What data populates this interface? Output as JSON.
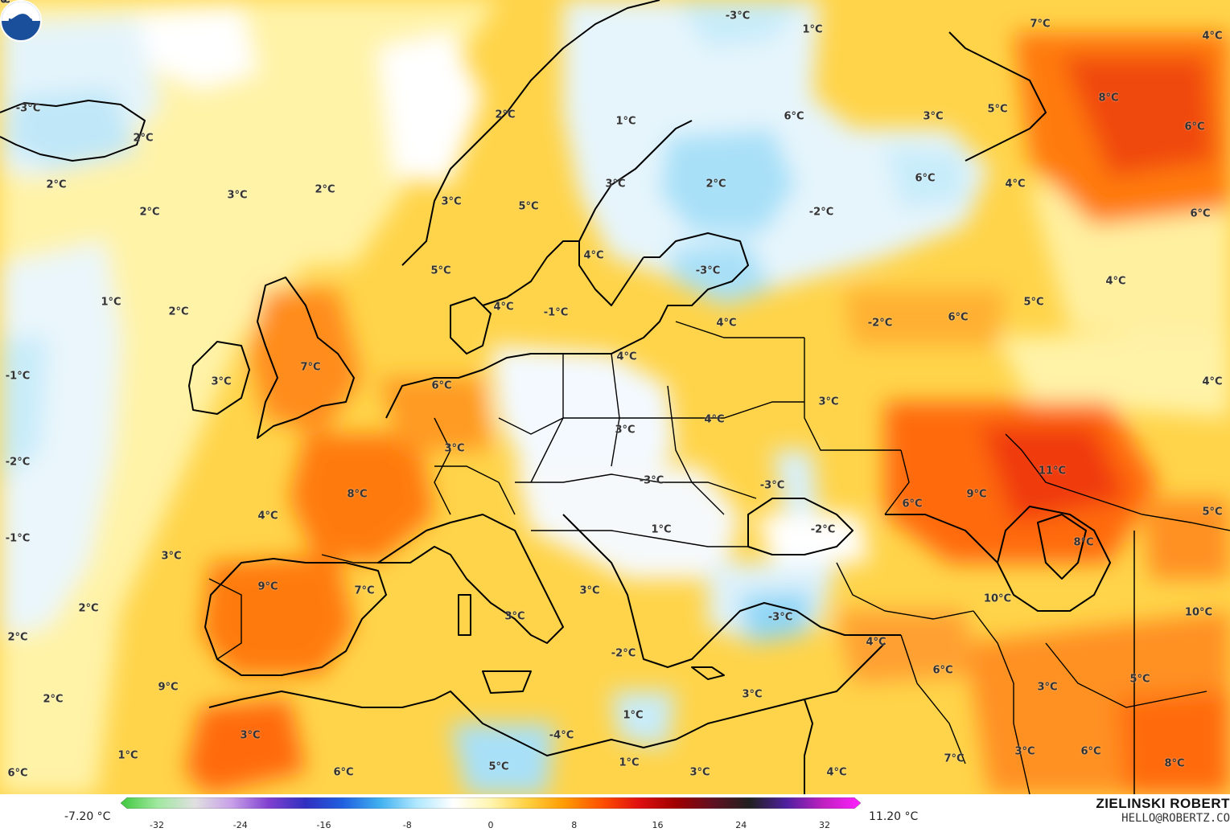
{
  "legend": {
    "min_label": "-7.20 °C",
    "max_label": "11.20 °C",
    "ticks": [
      "-32",
      "-24",
      "-16",
      "-8",
      "0",
      "8",
      "16",
      "24",
      "32"
    ],
    "colors": [
      "#3ec83c",
      "#a0e8a0",
      "#e0e0e0",
      "#c8a0e8",
      "#8040d0",
      "#3030c0",
      "#2060e0",
      "#40b0f0",
      "#b0e8ff",
      "#ffffff",
      "#fff5b0",
      "#ffd040",
      "#ff9a00",
      "#ff5000",
      "#e01010",
      "#a00000",
      "#601020",
      "#202020",
      "#5020a0",
      "#c020c0",
      "#ff20ff"
    ]
  },
  "credit": {
    "name": "ZIELINSKI ROBERT",
    "email": "HELLO@ROBERTZ.CO"
  },
  "logo": {
    "icon": "noaa-logo",
    "text": "NOAA"
  },
  "temperature_labels": [
    {
      "t": "1°C"
    },
    {
      "t": "-3°C"
    },
    {
      "t": "2°C"
    },
    {
      "t": "2°C"
    },
    {
      "t": "2°C"
    },
    {
      "t": "3°C"
    },
    {
      "t": "2°C"
    },
    {
      "t": "1°C"
    },
    {
      "t": "2°C"
    },
    {
      "t": "-1°C"
    },
    {
      "t": "3°C"
    },
    {
      "t": "7°C"
    },
    {
      "t": "-2°C"
    },
    {
      "t": "4°C"
    },
    {
      "t": "-1°C"
    },
    {
      "t": "3°C"
    },
    {
      "t": "8°C"
    },
    {
      "t": "3°C"
    },
    {
      "t": "9°C"
    },
    {
      "t": "7°C"
    },
    {
      "t": "2°C"
    },
    {
      "t": "2°C"
    },
    {
      "t": "2°C"
    },
    {
      "t": "9°C"
    },
    {
      "t": "3°C"
    },
    {
      "t": "1°C"
    },
    {
      "t": "6°C"
    },
    {
      "t": "6°C"
    },
    {
      "t": "5°C"
    },
    {
      "t": "6°C"
    },
    {
      "t": "3°C"
    },
    {
      "t": "5°C"
    },
    {
      "t": "2°C"
    },
    {
      "t": "1°C"
    },
    {
      "t": "3°C"
    },
    {
      "t": "4°C"
    },
    {
      "t": "-1°C"
    },
    {
      "t": "4°C"
    },
    {
      "t": "4°C"
    },
    {
      "t": "3°C"
    },
    {
      "t": "4°C"
    },
    {
      "t": "-3°C"
    },
    {
      "t": "1°C"
    },
    {
      "t": "3°C"
    },
    {
      "t": "3°C"
    },
    {
      "t": "-2°C"
    },
    {
      "t": "1°C"
    },
    {
      "t": "-4°C"
    },
    {
      "t": "5°C"
    },
    {
      "t": "1°C"
    },
    {
      "t": "3°C"
    },
    {
      "t": "4°C"
    },
    {
      "t": "3°C"
    },
    {
      "t": "-3°C"
    },
    {
      "t": "-3°C"
    },
    {
      "t": "-2°C"
    },
    {
      "t": "4°C"
    },
    {
      "t": "-3°C"
    },
    {
      "t": "1°C"
    },
    {
      "t": "-2°C"
    },
    {
      "t": "2°C"
    },
    {
      "t": "3°C"
    },
    {
      "t": "-3°C"
    },
    {
      "t": "6°C"
    },
    {
      "t": "3°C"
    },
    {
      "t": "5°C"
    },
    {
      "t": "6°C"
    },
    {
      "t": "-2°C"
    },
    {
      "t": "4°C"
    },
    {
      "t": "5°C"
    },
    {
      "t": "6°C"
    },
    {
      "t": "6°C"
    },
    {
      "t": "9°C"
    },
    {
      "t": "11°C"
    },
    {
      "t": "8°C"
    },
    {
      "t": "6°C"
    },
    {
      "t": "8°C"
    },
    {
      "t": "6°C"
    },
    {
      "t": "4°C"
    },
    {
      "t": "4°C"
    },
    {
      "t": "7°C"
    },
    {
      "t": "4°C"
    },
    {
      "t": "5°C"
    },
    {
      "t": "10°C"
    },
    {
      "t": "10°C"
    },
    {
      "t": "4°C"
    },
    {
      "t": "6°C"
    },
    {
      "t": "3°C"
    },
    {
      "t": "5°C"
    },
    {
      "t": "6°C"
    },
    {
      "t": "3°C"
    },
    {
      "t": "7°C"
    },
    {
      "t": "8°C"
    },
    {
      "t": "6°C"
    },
    {
      "t": "3°C"
    },
    {
      "t": "4°C"
    },
    {
      "t": "10"
    }
  ]
}
